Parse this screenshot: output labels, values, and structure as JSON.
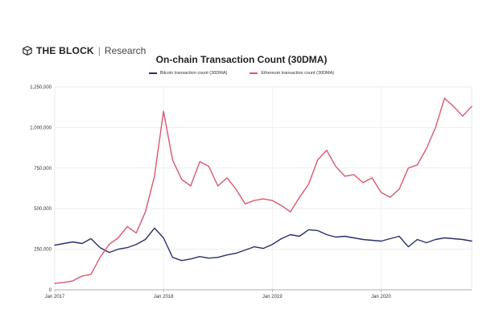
{
  "brand": {
    "name": "THE BLOCK",
    "separator": "|",
    "subtitle": "Research",
    "icon": "cube-logo-icon"
  },
  "chart_data": {
    "type": "line",
    "title": "On-chain Transaction Count (30DMA)",
    "xlabel": "",
    "ylabel": "",
    "x_start": "2017-01",
    "x_end": "2020-11",
    "x_ticks": [
      {
        "label": "Jan 2017",
        "x": "2017-01"
      },
      {
        "label": "Jan 2018",
        "x": "2018-01"
      },
      {
        "label": "Jan 2019",
        "x": "2019-01"
      },
      {
        "label": "Jan 2020",
        "x": "2020-01"
      }
    ],
    "y_ticks": [
      {
        "label": "0",
        "value": 0
      },
      {
        "label": "250,000",
        "value": 250000
      },
      {
        "label": "500,000",
        "value": 500000
      },
      {
        "label": "750,000",
        "value": 750000
      },
      {
        "label": "1,000,000",
        "value": 1000000
      },
      {
        "label": "1,250,000",
        "value": 1250000
      }
    ],
    "ylim": [
      0,
      1250000
    ],
    "grid": true,
    "legend_position": "top",
    "series": [
      {
        "name": "Bitcoin transaction count (30DMA)",
        "color": "#2b2f6b",
        "points": [
          [
            "2017-01",
            275000
          ],
          [
            "2017-02",
            285000
          ],
          [
            "2017-03",
            295000
          ],
          [
            "2017-04",
            285000
          ],
          [
            "2017-05",
            315000
          ],
          [
            "2017-06",
            260000
          ],
          [
            "2017-07",
            230000
          ],
          [
            "2017-08",
            250000
          ],
          [
            "2017-09",
            260000
          ],
          [
            "2017-10",
            280000
          ],
          [
            "2017-11",
            310000
          ],
          [
            "2017-12",
            380000
          ],
          [
            "2018-01",
            320000
          ],
          [
            "2018-02",
            200000
          ],
          [
            "2018-03",
            180000
          ],
          [
            "2018-04",
            190000
          ],
          [
            "2018-05",
            205000
          ],
          [
            "2018-06",
            195000
          ],
          [
            "2018-07",
            200000
          ],
          [
            "2018-08",
            215000
          ],
          [
            "2018-09",
            225000
          ],
          [
            "2018-10",
            245000
          ],
          [
            "2018-11",
            265000
          ],
          [
            "2018-12",
            255000
          ],
          [
            "2019-01",
            280000
          ],
          [
            "2019-02",
            315000
          ],
          [
            "2019-03",
            340000
          ],
          [
            "2019-04",
            330000
          ],
          [
            "2019-05",
            370000
          ],
          [
            "2019-06",
            365000
          ],
          [
            "2019-07",
            340000
          ],
          [
            "2019-08",
            325000
          ],
          [
            "2019-09",
            330000
          ],
          [
            "2019-10",
            320000
          ],
          [
            "2019-11",
            310000
          ],
          [
            "2019-12",
            305000
          ],
          [
            "2020-01",
            300000
          ],
          [
            "2020-02",
            315000
          ],
          [
            "2020-03",
            330000
          ],
          [
            "2020-04",
            265000
          ],
          [
            "2020-05",
            310000
          ],
          [
            "2020-06",
            290000
          ],
          [
            "2020-07",
            310000
          ],
          [
            "2020-08",
            320000
          ],
          [
            "2020-09",
            315000
          ],
          [
            "2020-10",
            310000
          ],
          [
            "2020-11",
            300000
          ]
        ]
      },
      {
        "name": "Ethereum transaction count (30DMA)",
        "color": "#d9576f",
        "points": [
          [
            "2017-01",
            40000
          ],
          [
            "2017-02",
            45000
          ],
          [
            "2017-03",
            55000
          ],
          [
            "2017-04",
            85000
          ],
          [
            "2017-05",
            95000
          ],
          [
            "2017-06",
            200000
          ],
          [
            "2017-07",
            280000
          ],
          [
            "2017-08",
            320000
          ],
          [
            "2017-09",
            390000
          ],
          [
            "2017-10",
            350000
          ],
          [
            "2017-11",
            480000
          ],
          [
            "2017-12",
            700000
          ],
          [
            "2018-01",
            1100000
          ],
          [
            "2018-02",
            800000
          ],
          [
            "2018-03",
            680000
          ],
          [
            "2018-04",
            640000
          ],
          [
            "2018-05",
            790000
          ],
          [
            "2018-06",
            760000
          ],
          [
            "2018-07",
            640000
          ],
          [
            "2018-08",
            690000
          ],
          [
            "2018-09",
            620000
          ],
          [
            "2018-10",
            530000
          ],
          [
            "2018-11",
            550000
          ],
          [
            "2018-12",
            560000
          ],
          [
            "2019-01",
            550000
          ],
          [
            "2019-02",
            520000
          ],
          [
            "2019-03",
            480000
          ],
          [
            "2019-04",
            570000
          ],
          [
            "2019-05",
            650000
          ],
          [
            "2019-06",
            800000
          ],
          [
            "2019-07",
            860000
          ],
          [
            "2019-08",
            760000
          ],
          [
            "2019-09",
            700000
          ],
          [
            "2019-10",
            710000
          ],
          [
            "2019-11",
            660000
          ],
          [
            "2019-12",
            690000
          ],
          [
            "2020-01",
            600000
          ],
          [
            "2020-02",
            570000
          ],
          [
            "2020-03",
            620000
          ],
          [
            "2020-04",
            750000
          ],
          [
            "2020-05",
            770000
          ],
          [
            "2020-06",
            870000
          ],
          [
            "2020-07",
            1000000
          ],
          [
            "2020-08",
            1180000
          ],
          [
            "2020-09",
            1130000
          ],
          [
            "2020-10",
            1070000
          ],
          [
            "2020-11",
            1130000
          ]
        ]
      }
    ]
  }
}
